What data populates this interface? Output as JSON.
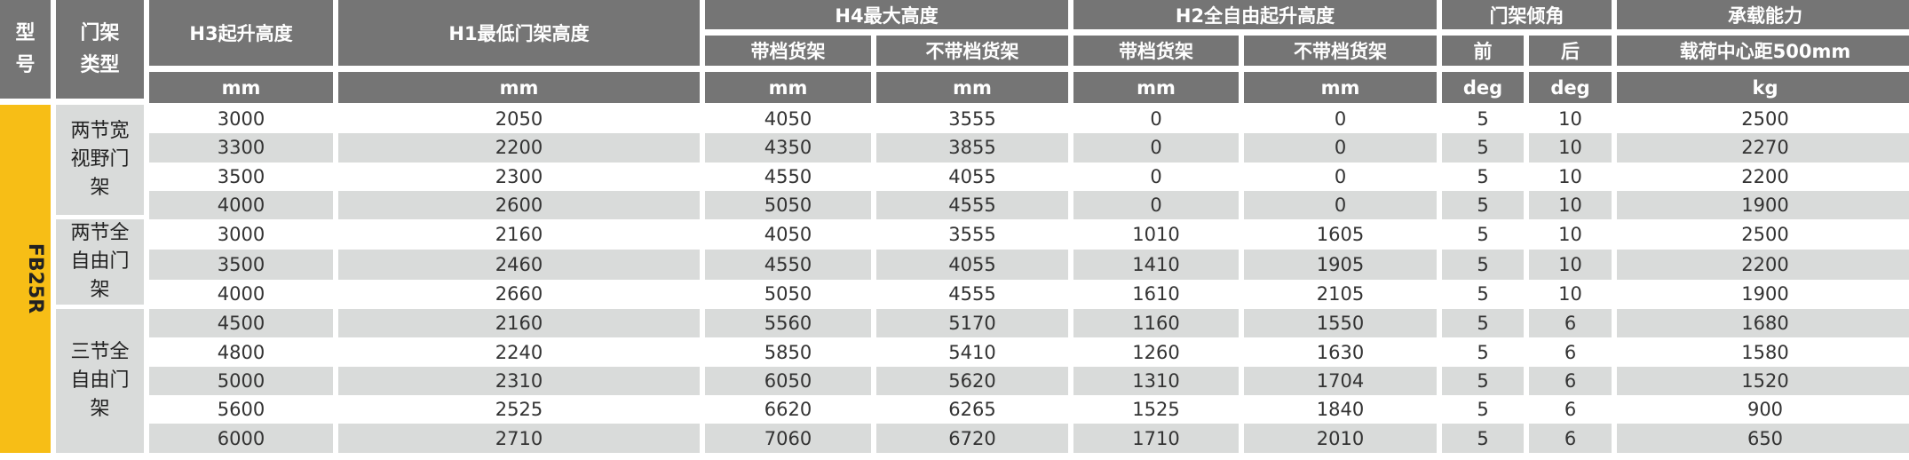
{
  "header": {
    "model": "型号",
    "frame_type": "门架类型",
    "h3": "H3起升高度",
    "h1": "H1最低门架高度",
    "h4": "H4最大高度",
    "h4_with": "带档货架",
    "h4_without": "不带档货架",
    "h2": "H2全自由起升高度",
    "h2_with": "带档货架",
    "h2_without": "不带档货架",
    "tilt": "门架倾角",
    "tilt_front": "前",
    "tilt_rear": "后",
    "capacity": "承载能力",
    "capacity_sub": "载荷中心距500mm",
    "units": [
      "mm",
      "mm",
      "mm",
      "mm",
      "mm",
      "mm",
      "deg",
      "deg",
      "kg"
    ]
  },
  "model": "FB25R",
  "groups": [
    {
      "type": "两节宽视野门架",
      "rows": [
        [
          "3000",
          "2050",
          "4050",
          "3555",
          "0",
          "0",
          "5",
          "10",
          "2500"
        ],
        [
          "3300",
          "2200",
          "4350",
          "3855",
          "0",
          "0",
          "5",
          "10",
          "2270"
        ],
        [
          "3500",
          "2300",
          "4550",
          "4055",
          "0",
          "0",
          "5",
          "10",
          "2200"
        ],
        [
          "4000",
          "2600",
          "5050",
          "4555",
          "0",
          "0",
          "5",
          "10",
          "1900"
        ]
      ]
    },
    {
      "type": "两节全自由门架",
      "rows": [
        [
          "3000",
          "2160",
          "4050",
          "3555",
          "1010",
          "1605",
          "5",
          "10",
          "2500"
        ],
        [
          "3500",
          "2460",
          "4550",
          "4055",
          "1410",
          "1905",
          "5",
          "10",
          "2200"
        ],
        [
          "4000",
          "2660",
          "5050",
          "4555",
          "1610",
          "2105",
          "5",
          "10",
          "1900"
        ]
      ]
    },
    {
      "type": "三节全自由门架",
      "rows": [
        [
          "4500",
          "2160",
          "5560",
          "5170",
          "1160",
          "1550",
          "5",
          "6",
          "1680"
        ],
        [
          "4800",
          "2240",
          "5850",
          "5410",
          "1260",
          "1630",
          "5",
          "6",
          "1580"
        ],
        [
          "5000",
          "2310",
          "6050",
          "5620",
          "1310",
          "1704",
          "5",
          "6",
          "1520"
        ],
        [
          "5600",
          "2525",
          "6620",
          "6265",
          "1525",
          "1840",
          "5",
          "6",
          "900"
        ],
        [
          "6000",
          "2710",
          "7060",
          "6720",
          "1710",
          "2010",
          "5",
          "6",
          "650"
        ]
      ]
    }
  ],
  "colors": {
    "header": "#757575",
    "model": "#f7be16",
    "stripe": "#d9dbda"
  }
}
